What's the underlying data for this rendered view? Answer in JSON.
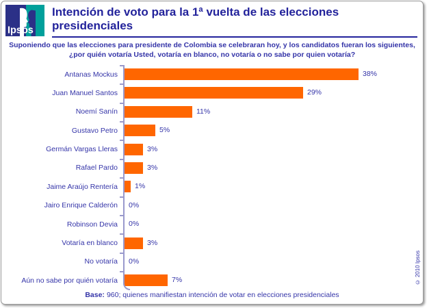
{
  "header": {
    "logo_text": "Ipsos",
    "title": "Intención de voto para la 1ª vuelta de las elecciones presidenciales"
  },
  "subtitle": {
    "line1": "Suponiendo que las elecciones para presidente de Colombia se celebraran hoy, y los candidatos fueran los siguientes,",
    "line2": "¿por quién votaría Usted, votaría en blanco, no votaría o no sabe por quien votaría?"
  },
  "chart_data": {
    "type": "bar",
    "orientation": "horizontal",
    "categories": [
      "Antanas Mockus",
      "Juan Manuel Santos",
      "Noemí Sanín",
      "Gustavo Petro",
      "Germán Vargas Lleras",
      "Rafael Pardo",
      "Jaime Araújo Rentería",
      "Jairo Enrique Calderón",
      "Robinson Devia",
      "Votaría en blanco",
      "No votaría",
      "Aún no sabe por quién votaría"
    ],
    "values": [
      38,
      29,
      11,
      5,
      3,
      3,
      1,
      0,
      0,
      3,
      0,
      7
    ],
    "value_labels": [
      "38%",
      "29%",
      "11%",
      "5%",
      "3%",
      "3%",
      "1%",
      "0%",
      "0%",
      "3%",
      "0%",
      "7%"
    ],
    "unit": "%",
    "xlim": [
      0,
      40
    ],
    "grid": false,
    "legend": false,
    "bar_color": "#FF6600",
    "label_color": "#3434A8",
    "axis_color": "#9999CC"
  },
  "footer": {
    "base_label": "Base:",
    "base_text": "960; quienes manifiestan intención de votar en elecciones presidenciales"
  },
  "copyright": "© 2010 Ipsos",
  "colors": {
    "title_navy": "#22229B",
    "text_blue": "#3434A8",
    "bar_orange": "#FF6600",
    "logo_navy": "#2B3087",
    "logo_teal": "#00A09B"
  }
}
